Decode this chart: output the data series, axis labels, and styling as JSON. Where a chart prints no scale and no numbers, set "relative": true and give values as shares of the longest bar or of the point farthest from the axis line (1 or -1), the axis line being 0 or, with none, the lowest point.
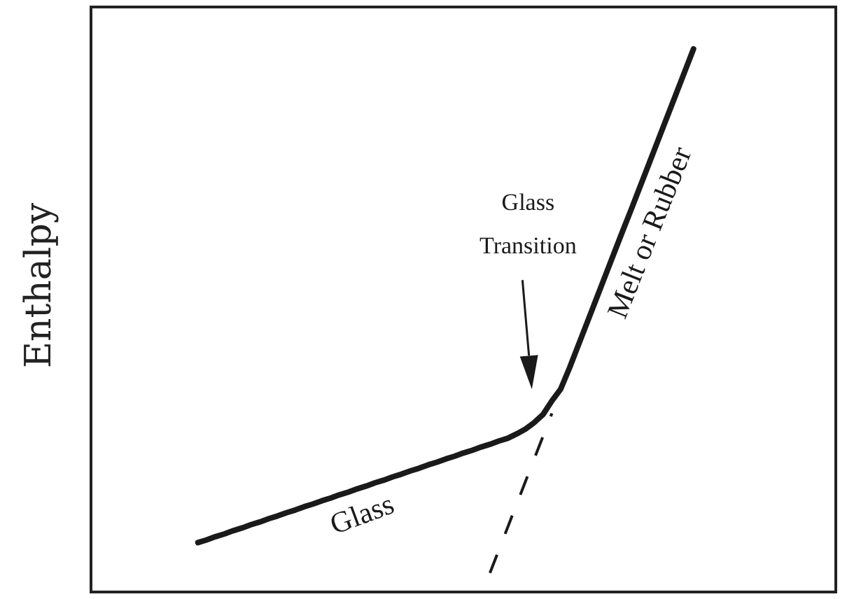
{
  "chart_data": {
    "type": "line",
    "ylabel": "Enthalpy",
    "relative": true,
    "categories": [
      null,
      null,
      null,
      null,
      null,
      null,
      null,
      null,
      null,
      null,
      null,
      null,
      null,
      null,
      null,
      null,
      null,
      null,
      null,
      null,
      null,
      null,
      null,
      null,
      null,
      null,
      null,
      null,
      null,
      null,
      null,
      null,
      null,
      null,
      null,
      null,
      null,
      null,
      null,
      null,
      null,
      null,
      null,
      null,
      null,
      null,
      null,
      null,
      null,
      null,
      null,
      null,
      null,
      null,
      null,
      null,
      null,
      null,
      null,
      null,
      null,
      null,
      null,
      null,
      null,
      null,
      null,
      null,
      null,
      null,
      null,
      null,
      null,
      null,
      null,
      null,
      null,
      null,
      null,
      null,
      null,
      null,
      null,
      null,
      null
    ],
    "series": [
      {
        "color": "#1a1a1a",
        "values": [
          null,
          null,
          null,
          null,
          null,
          null,
          null,
          null,
          null,
          null,
          null,
          null,
          0.091,
          0.096,
          0.102,
          0.107,
          0.113,
          0.118,
          0.124,
          0.129,
          0.135,
          0.14,
          0.146,
          0.151,
          0.157,
          0.162,
          0.168,
          0.173,
          0.179,
          0.184,
          0.19,
          0.195,
          0.201,
          0.206,
          0.212,
          0.217,
          0.223,
          0.228,
          0.234,
          0.239,
          0.245,
          0.25,
          0.256,
          0.261,
          0.267,
          0.272,
          0.278,
          0.283,
          0.291,
          0.3,
          0.312,
          0.327,
          0.352,
          0.374,
          0.413,
          0.455,
          0.497,
          0.539,
          0.581,
          0.623,
          0.665,
          0.706,
          0.748,
          0.79,
          0.832,
          0.874,
          0.916,
          0.958,
          1.0,
          null,
          null,
          null,
          null,
          null,
          null,
          null,
          null,
          null,
          null,
          null,
          null,
          null,
          null,
          null,
          null
        ]
      },
      {
        "color": "#1a1a1a",
        "line_style": "dashed",
        "values": [
          null,
          null,
          null,
          null,
          null,
          null,
          null,
          null,
          null,
          null,
          null,
          null,
          null,
          null,
          null,
          null,
          null,
          null,
          null,
          null,
          null,
          null,
          null,
          null,
          null,
          null,
          null,
          null,
          null,
          null,
          null,
          null,
          null,
          null,
          null,
          null,
          null,
          null,
          null,
          null,
          null,
          null,
          null,
          null,
          null,
          0.035,
          0.077,
          0.119,
          0.161,
          0.203,
          0.245,
          0.287,
          0.329,
          null,
          null,
          null,
          null,
          null,
          null,
          null,
          null,
          null,
          null,
          null,
          null,
          null,
          null,
          null,
          null,
          null,
          null,
          null,
          null,
          null,
          null,
          null,
          null,
          null,
          null,
          null,
          null,
          null,
          null,
          null,
          null
        ]
      }
    ],
    "annotations": [
      "Glass Transition",
      "Glass",
      "Melt or Rubber"
    ]
  }
}
